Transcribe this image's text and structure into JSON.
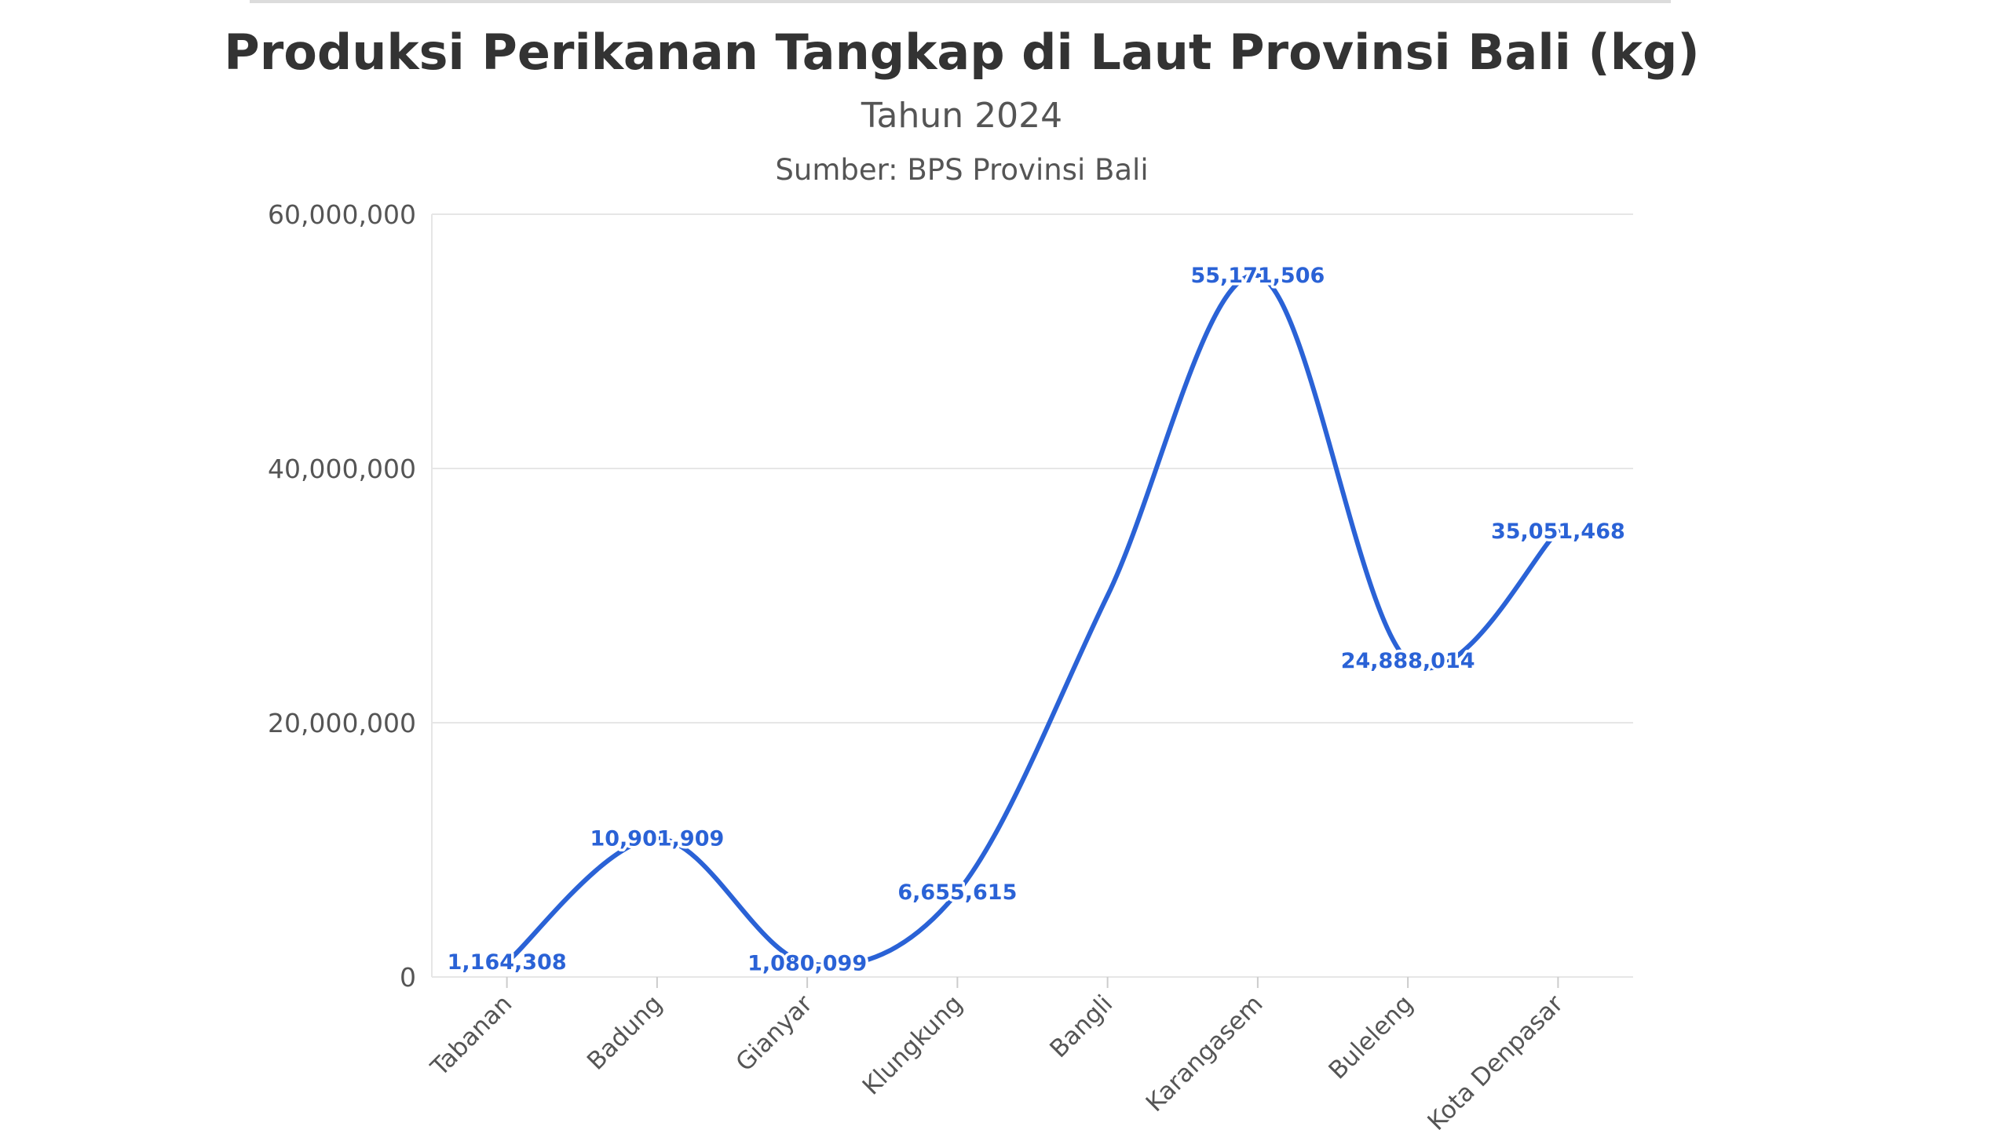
{
  "chart_data": {
    "type": "line",
    "title": "Produksi Perikanan Tangkap di Laut Provinsi Bali (kg)",
    "subtitle": "Tahun 2024",
    "source": "Sumber: BPS Provinsi Bali",
    "xlabel": "",
    "ylabel": "",
    "categories": [
      "Tabanan",
      "Badung",
      "Gianyar",
      "Klungkung",
      "Bangli",
      "Karangasem",
      "Buleleng",
      "Kota Denpasar"
    ],
    "series": [
      {
        "values": [
          1164308,
          10901909,
          1080099,
          6655615,
          30000000,
          55171506,
          24888014,
          35051468
        ],
        "data_labels": [
          "1,164,308",
          "10,901,909",
          "1,080,099",
          "6,655,615",
          "",
          "55,171,506",
          "24,888,014",
          "35,051,468"
        ],
        "color": "#2a62d6",
        "smooth": true
      }
    ],
    "ylim": [
      0,
      60000000
    ],
    "yticks": [
      0,
      20000000,
      40000000,
      60000000
    ],
    "ytick_labels": [
      "0",
      "20,000,000",
      "40,000,000",
      "60,000,000"
    ],
    "grid": true,
    "legend": "none"
  }
}
